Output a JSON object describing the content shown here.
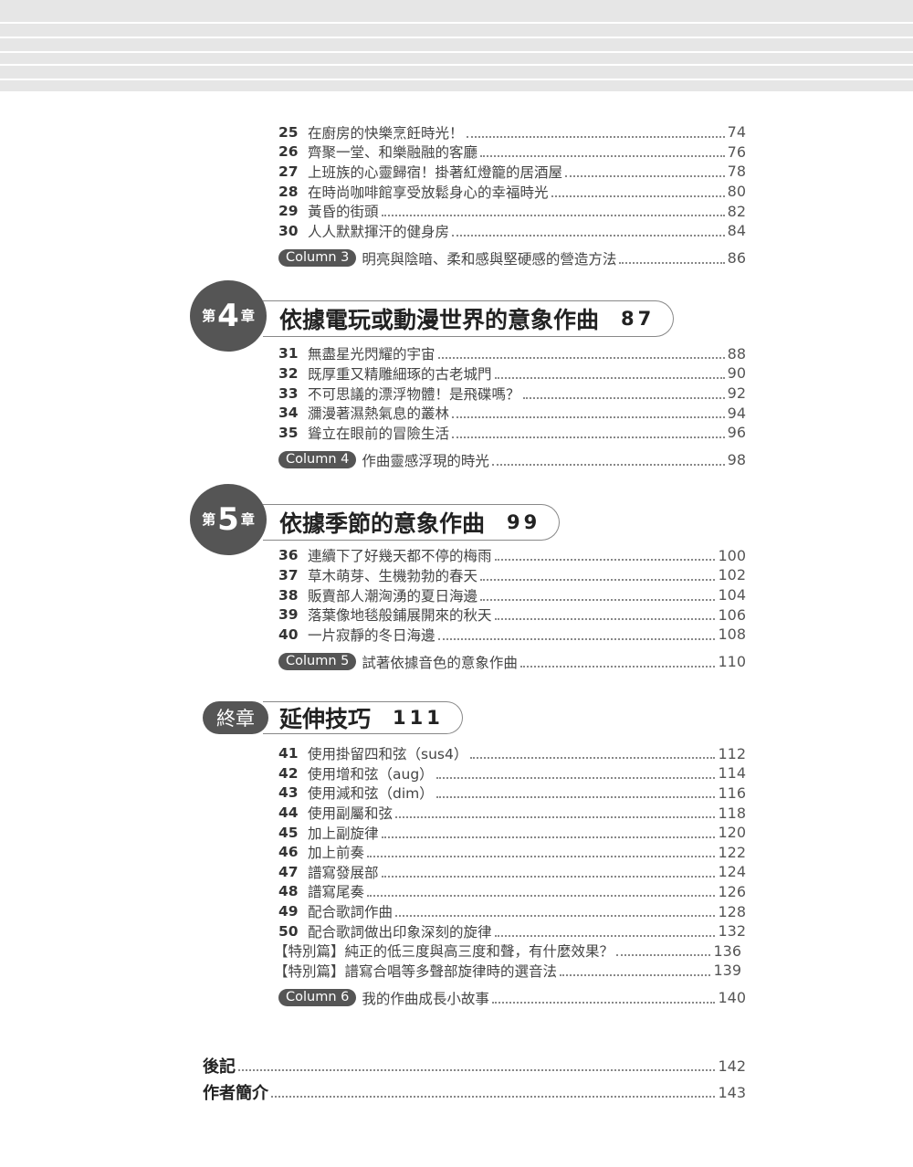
{
  "colors": {
    "badge": "#555555",
    "band": "#e6e6e6"
  },
  "sections": [
    {
      "entries": [
        {
          "num": "25",
          "title": "在廚房的快樂烹飪時光！",
          "page": "74"
        },
        {
          "num": "26",
          "title": "齊聚一堂、和樂融融的客廳",
          "page": "76"
        },
        {
          "num": "27",
          "title": "上班族的心靈歸宿！掛著紅燈籠的居酒屋",
          "page": "78"
        },
        {
          "num": "28",
          "title": "在時尚咖啡館享受放鬆身心的幸福時光",
          "page": "80"
        },
        {
          "num": "29",
          "title": "黃昏的街頭",
          "page": "82"
        },
        {
          "num": "30",
          "title": "人人默默揮汗的健身房",
          "page": "84"
        }
      ],
      "column": {
        "badge": "Column 3",
        "title": "明亮與陰暗、柔和感與堅硬感的營造方法",
        "page": "86"
      }
    },
    {
      "chapter": {
        "prefix": "第",
        "number": "4",
        "suffix": "章",
        "title": "依據電玩或動漫世界的意象作曲",
        "page": "87"
      },
      "entries": [
        {
          "num": "31",
          "title": "無盡星光閃耀的宇宙",
          "page": "88"
        },
        {
          "num": "32",
          "title": "既厚重又精雕細琢的古老城門",
          "page": "90"
        },
        {
          "num": "33",
          "title": "不可思議的漂浮物體！是飛碟嗎？",
          "page": "92"
        },
        {
          "num": "34",
          "title": "瀰漫著濕熱氣息的叢林",
          "page": "94"
        },
        {
          "num": "35",
          "title": "聳立在眼前的冒險生活",
          "page": "96"
        }
      ],
      "column": {
        "badge": "Column 4",
        "title": "作曲靈感浮現的時光",
        "page": "98"
      }
    },
    {
      "chapter": {
        "prefix": "第",
        "number": "5",
        "suffix": "章",
        "title": "依據季節的意象作曲",
        "page": "99"
      },
      "entries": [
        {
          "num": "36",
          "title": "連續下了好幾天都不停的梅雨",
          "page": "100"
        },
        {
          "num": "37",
          "title": "草木萌芽、生機勃勃的春天",
          "page": "102"
        },
        {
          "num": "38",
          "title": "販賣部人潮洶湧的夏日海邊",
          "page": "104"
        },
        {
          "num": "39",
          "title": "落葉像地毯般鋪展開來的秋天",
          "page": "106"
        },
        {
          "num": "40",
          "title": "一片寂靜的冬日海邊",
          "page": "108"
        }
      ],
      "column": {
        "badge": "Column 5",
        "title": "試著依據音色的意象作曲",
        "page": "110"
      }
    },
    {
      "chapter": {
        "badge": "終章",
        "title": "延伸技巧",
        "page": "111"
      },
      "entries": [
        {
          "num": "41",
          "title": "使用掛留四和弦（sus4）",
          "page": "112"
        },
        {
          "num": "42",
          "title": "使用增和弦（aug）",
          "page": "114"
        },
        {
          "num": "43",
          "title": "使用減和弦（dim）",
          "page": "116"
        },
        {
          "num": "44",
          "title": "使用副屬和弦",
          "page": "118"
        },
        {
          "num": "45",
          "title": "加上副旋律",
          "page": "120"
        },
        {
          "num": "46",
          "title": "加上前奏",
          "page": "122"
        },
        {
          "num": "47",
          "title": "譜寫發展部",
          "page": "124"
        },
        {
          "num": "48",
          "title": "譜寫尾奏",
          "page": "126"
        },
        {
          "num": "49",
          "title": "配合歌詞作曲",
          "page": "128"
        },
        {
          "num": "50",
          "title": "配合歌詞做出印象深刻的旋律",
          "page": "132"
        },
        {
          "num": "",
          "title": "【特別篇】純正的低三度與高三度和聲，有什麼效果？",
          "page": "136"
        },
        {
          "num": "",
          "title": "【特別篇】譜寫合唱等多聲部旋律時的選音法",
          "page": "139"
        }
      ],
      "column": {
        "badge": "Column 6",
        "title": "我的作曲成長小故事",
        "page": "140"
      }
    }
  ],
  "backmatter": [
    {
      "title": "後記",
      "page": "142"
    },
    {
      "title": "作者簡介",
      "page": "143"
    }
  ]
}
